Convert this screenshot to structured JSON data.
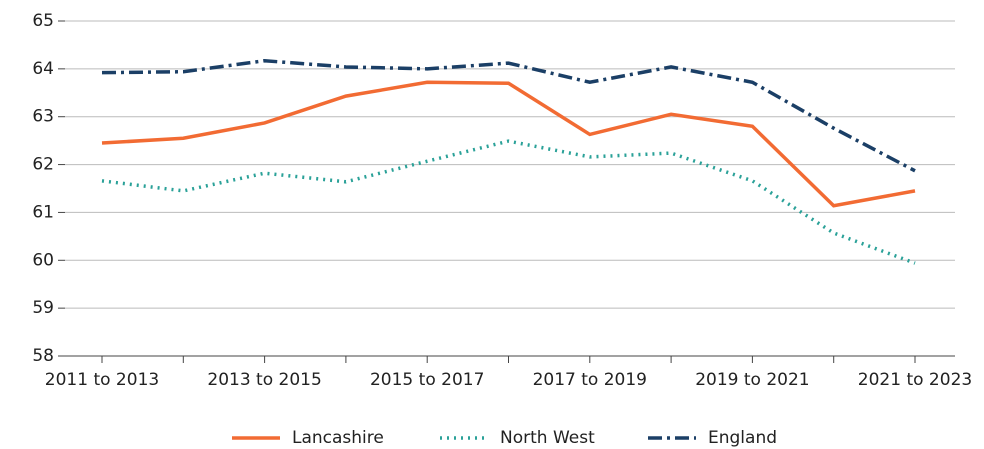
{
  "chart_data": {
    "type": "line",
    "categories": [
      "2011 to 2013",
      null,
      "2013 to 2015",
      null,
      "2015 to 2017",
      null,
      "2017 to 2019",
      null,
      "2019 to 2021",
      null,
      "2021 to 2023"
    ],
    "series": [
      {
        "name": "Lancashire",
        "color": "#f26b33",
        "dash": "solid",
        "values": [
          62.45,
          62.55,
          62.87,
          63.43,
          63.72,
          63.7,
          62.63,
          63.05,
          62.8,
          61.14,
          61.45
        ]
      },
      {
        "name": "North West",
        "color": "#2aa198",
        "dash": "dotted",
        "values": [
          61.66,
          61.45,
          61.82,
          61.64,
          62.07,
          62.49,
          62.16,
          62.24,
          61.66,
          60.57,
          59.94
        ]
      },
      {
        "name": "England",
        "color": "#1b3f66",
        "dash": "dashdot",
        "values": [
          63.92,
          63.94,
          64.17,
          64.04,
          64.0,
          64.12,
          63.72,
          64.04,
          63.72,
          62.76,
          61.87
        ]
      }
    ],
    "ylim": [
      58,
      65
    ],
    "yticks": [
      58,
      59,
      60,
      61,
      62,
      63,
      64,
      65
    ],
    "grid": true,
    "legend": "bottom"
  }
}
